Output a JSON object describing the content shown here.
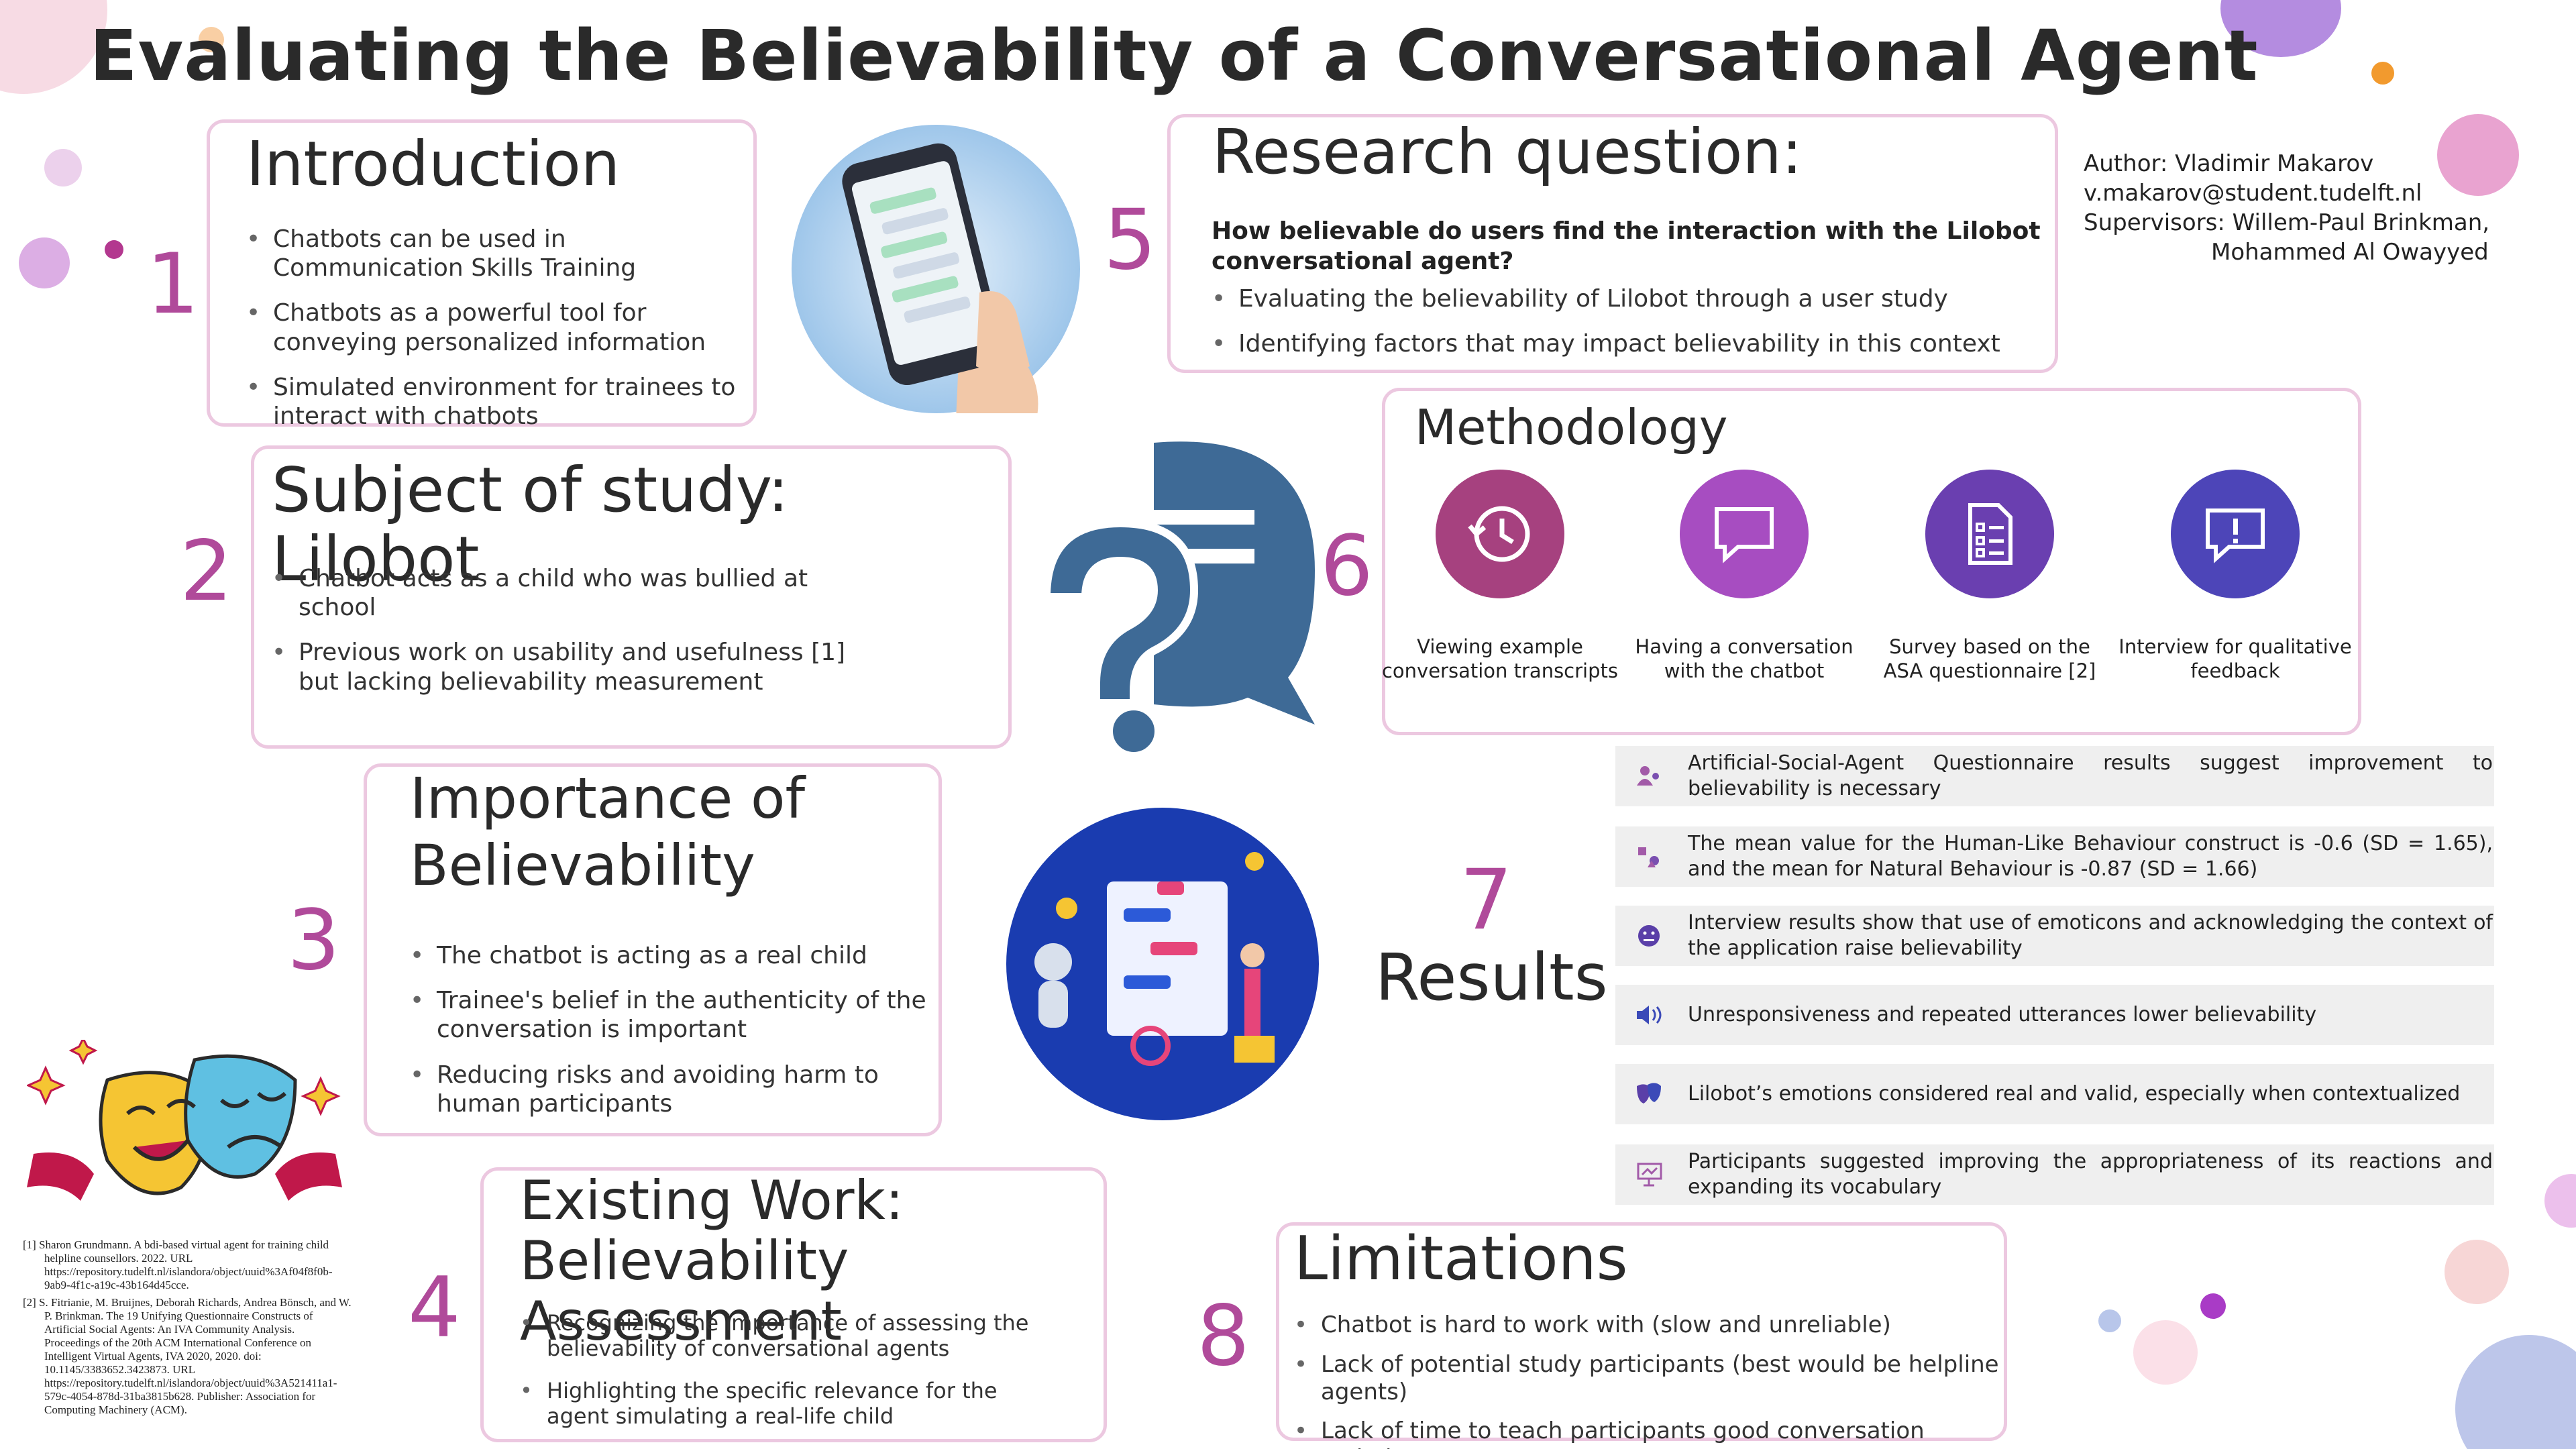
{
  "title": "Evaluating the Believability of a Conversational Agent",
  "author": {
    "line1": "Author: Vladimir Makarov",
    "email": "v.makarov@student.tudelft.nl",
    "supervisors": "Supervisors: Willem-Paul Brinkman,",
    "supervisor2": "Mohammed Al Owayyed"
  },
  "intro": {
    "num": "1",
    "heading": "Introduction",
    "items": [
      "Chatbots can be used in Communication Skills Training",
      "Chatbots as a powerful tool for conveying personalized information",
      "Simulated environment for trainees to interact with chatbots"
    ]
  },
  "subject": {
    "num": "2",
    "heading": "Subject of study: Lilobot",
    "items": [
      "Chatbot acts as a child who was bullied at school",
      "Previous work on usability and usefulness [1] but lacking believability measurement"
    ]
  },
  "importance": {
    "num": "3",
    "heading1": "Importance of",
    "heading2": "Believability",
    "items": [
      "The chatbot is acting as a real child",
      "Trainee's belief in the authenticity of the conversation is important",
      "Reducing risks and avoiding harm to human participants"
    ]
  },
  "existing": {
    "num": "4",
    "heading1": "Existing Work:",
    "heading2": "Believability Assessment",
    "items": [
      "Recognizing the importance of assessing the believability of conversational agents",
      "Highlighting the specific relevance for the agent simulating a real-life child"
    ]
  },
  "research": {
    "num": "5",
    "heading": "Research question:",
    "question": "How believable do users find the interaction with the Lilobot conversational agent?",
    "items": [
      "Evaluating the believability of Lilobot through a user study",
      "Identifying factors that may impact believability in this context"
    ]
  },
  "methodology": {
    "num": "6",
    "heading": "Methodology",
    "steps": [
      {
        "line1": "Viewing example",
        "line2": "conversation transcripts",
        "icon": "history-icon",
        "color": "#a6417f"
      },
      {
        "line1": "Having a conversation",
        "line2": "with the chatbot",
        "icon": "chat-bubble-icon",
        "color": "#a74dc1"
      },
      {
        "line1": "Survey based on the",
        "line2": "ASA questionnaire [2]",
        "icon": "survey-document-icon",
        "color": "#6a3fb0"
      },
      {
        "line1": "Interview for qualitative",
        "line2": "feedback",
        "icon": "feedback-alert-icon",
        "color": "#4d45b8"
      }
    ]
  },
  "results": {
    "num": "7",
    "heading": "Results",
    "items": [
      {
        "text": "Artificial-Social-Agent Questionnaire results suggest improvement to believability is necessary",
        "icon": "users-icon"
      },
      {
        "text": "The mean value for the Human-Like Behaviour construct is -0.6 (SD = 1.65), and the mean for Natural Behaviour is -0.87 (SD = 1.66)",
        "icon": "chart-shapes-icon"
      },
      {
        "text": "Interview results show that use of emoticons and acknowledging the context of the application raise believability",
        "icon": "emoticon-icon"
      },
      {
        "text": "Unresponsiveness and repeated utterances lower believability",
        "icon": "speaker-icon"
      },
      {
        "text": "Lilobot’s emotions considered real and valid, especially when contextualized",
        "icon": "masks-icon"
      },
      {
        "text": "Participants suggested improving the appropriateness of its reactions and expanding its vocabulary",
        "icon": "presentation-icon"
      }
    ]
  },
  "limitations": {
    "num": "8",
    "heading": "Limitations",
    "items": [
      "Chatbot is hard to work with (slow and unreliable)",
      "Lack of potential study participants (best would be helpline agents)",
      "Lack of time to teach participants good conversation techniques"
    ]
  },
  "references": [
    "[1] Sharon Grundmann. A bdi-based virtual agent for training child helpline counsellors. 2022. URL https://repository.tudelft.nl/islandora/object/uuid%3Af04f8f0b-9ab9-4f1c-a19c-43b164d45cce.",
    "[2] S. Fitrianie, M. Bruijnes, Deborah Richards, Andrea Bönsch, and W. P. Brinkman. The 19 Unifying Questionnaire Constructs of Artificial Social Agents: An IVA Community Analysis. Proceedings of the 20th ACM International Conference on Intelligent Virtual Agents, IVA 2020, 2020. doi: 10.1145/3383652.3423873. URL https://repository.tudelft.nl/islandora/object/uuid%3A521411a1-579c-4054-878d-31ba3815b628. Publisher: Association for Computing Machinery (ACM)."
  ],
  "colors": {
    "accent_number": "#b04a9a",
    "panel_border": "#ecc8e0",
    "question_mark_blue": "#3e6a96",
    "result_bg": "#efefef"
  }
}
